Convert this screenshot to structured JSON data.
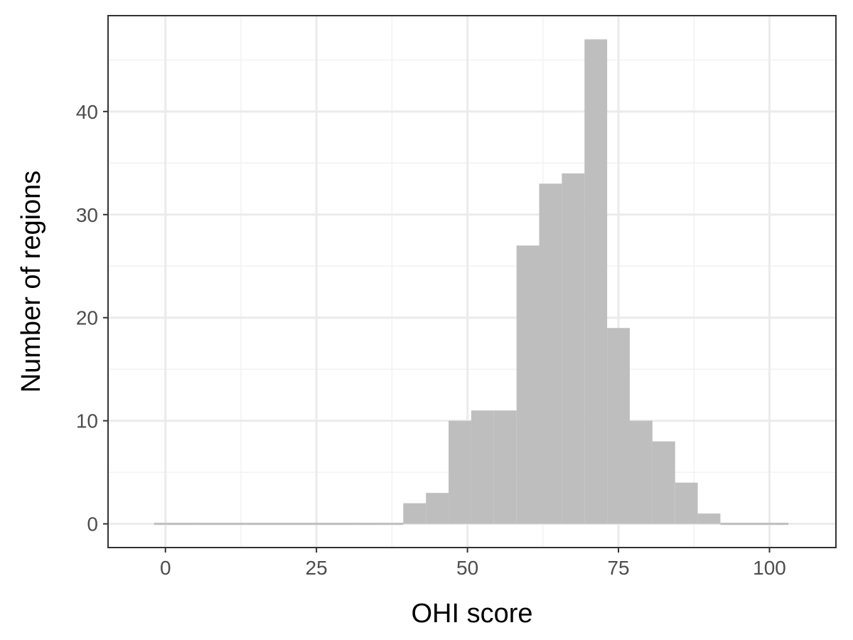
{
  "chart_data": {
    "type": "bar",
    "title": "",
    "xlabel": "OHI score",
    "ylabel": "Number of regions",
    "xlim": [
      -9.5,
      111
    ],
    "ylim": [
      -2.3,
      49.3
    ],
    "x_ticks": [
      0,
      25,
      50,
      75,
      100
    ],
    "y_ticks": [
      0,
      10,
      20,
      30,
      40
    ],
    "grid": true,
    "legend": "none",
    "bin_width": 3.75,
    "bin_start": -1.875,
    "bins": [
      {
        "x0": -1.875,
        "x1": 1.875,
        "count": 0
      },
      {
        "x0": 1.875,
        "x1": 5.625,
        "count": 0
      },
      {
        "x0": 5.625,
        "x1": 9.375,
        "count": 0
      },
      {
        "x0": 9.375,
        "x1": 13.125,
        "count": 0
      },
      {
        "x0": 13.125,
        "x1": 16.875,
        "count": 0
      },
      {
        "x0": 16.875,
        "x1": 20.625,
        "count": 0
      },
      {
        "x0": 20.625,
        "x1": 24.375,
        "count": 0
      },
      {
        "x0": 24.375,
        "x1": 28.125,
        "count": 0
      },
      {
        "x0": 28.125,
        "x1": 31.875,
        "count": 0
      },
      {
        "x0": 31.875,
        "x1": 35.625,
        "count": 0
      },
      {
        "x0": 35.625,
        "x1": 39.375,
        "count": 0
      },
      {
        "x0": 39.375,
        "x1": 43.125,
        "count": 2
      },
      {
        "x0": 43.125,
        "x1": 46.875,
        "count": 3
      },
      {
        "x0": 46.875,
        "x1": 50.625,
        "count": 10
      },
      {
        "x0": 50.625,
        "x1": 54.375,
        "count": 11
      },
      {
        "x0": 54.375,
        "x1": 58.125,
        "count": 11
      },
      {
        "x0": 58.125,
        "x1": 61.875,
        "count": 27
      },
      {
        "x0": 61.875,
        "x1": 65.625,
        "count": 33
      },
      {
        "x0": 65.625,
        "x1": 69.375,
        "count": 34
      },
      {
        "x0": 69.375,
        "x1": 73.125,
        "count": 47
      },
      {
        "x0": 73.125,
        "x1": 76.875,
        "count": 19
      },
      {
        "x0": 76.875,
        "x1": 80.625,
        "count": 10
      },
      {
        "x0": 80.625,
        "x1": 84.375,
        "count": 8
      },
      {
        "x0": 84.375,
        "x1": 88.125,
        "count": 4
      },
      {
        "x0": 88.125,
        "x1": 91.875,
        "count": 1
      },
      {
        "x0": 91.875,
        "x1": 95.625,
        "count": 0
      },
      {
        "x0": 95.625,
        "x1": 99.375,
        "count": 0
      },
      {
        "x0": 99.375,
        "x1": 103.125,
        "count": 0
      }
    ],
    "colors": {
      "bar_fill": "#bebebe",
      "panel_border": "#333333",
      "grid_major": "#ebebeb",
      "grid_minor": "#f2f2f2",
      "tick_text": "#4d4d4d",
      "title_text": "#000000"
    }
  }
}
